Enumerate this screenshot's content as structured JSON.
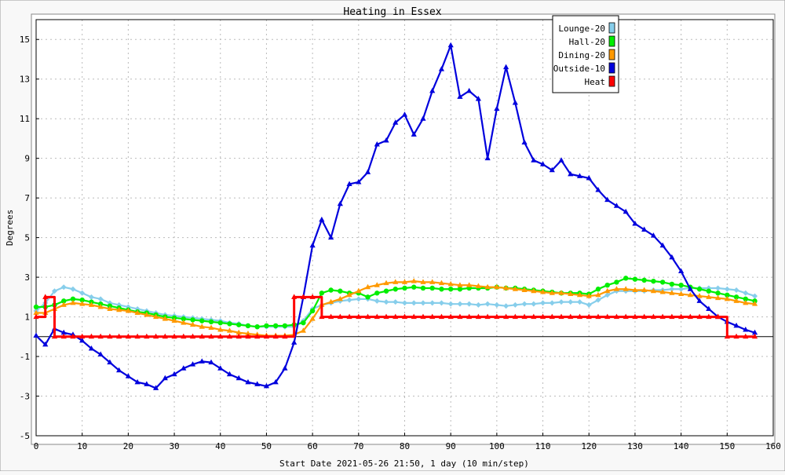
{
  "chart_data": {
    "type": "line",
    "title": "Heating in Essex",
    "xlabel": "Start Date 2021-05-26 21:50, 1 day (10 min/step)",
    "ylabel": "Degrees",
    "xlim": [
      0,
      160
    ],
    "ylim": [
      -5,
      16
    ],
    "x_ticks": [
      0,
      10,
      20,
      30,
      40,
      50,
      60,
      70,
      80,
      90,
      100,
      110,
      120,
      130,
      140,
      150,
      160
    ],
    "y_ticks": [
      -5,
      -3,
      -1,
      1,
      3,
      5,
      7,
      9,
      11,
      13,
      15
    ],
    "grid": true,
    "legend_position": "top-right",
    "x": [
      0,
      2,
      4,
      6,
      8,
      10,
      12,
      14,
      16,
      18,
      20,
      22,
      24,
      26,
      28,
      30,
      32,
      34,
      36,
      38,
      40,
      42,
      44,
      46,
      48,
      50,
      52,
      54,
      56,
      58,
      60,
      62,
      64,
      66,
      68,
      70,
      72,
      74,
      76,
      78,
      80,
      82,
      84,
      86,
      88,
      90,
      92,
      94,
      96,
      98,
      100,
      102,
      104,
      106,
      108,
      110,
      112,
      114,
      116,
      118,
      120,
      122,
      124,
      126,
      128,
      130,
      132,
      134,
      136,
      138,
      140,
      142,
      144,
      146,
      148,
      150,
      152,
      154,
      156
    ],
    "series": [
      {
        "name": "Lounge-20",
        "color": "#87ceeb",
        "marker": "diamond",
        "values": [
          1.3,
          1.7,
          2.3,
          2.5,
          2.4,
          2.2,
          2.0,
          1.9,
          1.7,
          1.6,
          1.5,
          1.4,
          1.3,
          1.2,
          1.1,
          1.05,
          1.0,
          0.95,
          0.9,
          0.85,
          0.8,
          0.7,
          0.65,
          0.55,
          0.5,
          0.5,
          0.5,
          0.5,
          0.5,
          0.8,
          1.4,
          1.6,
          1.7,
          1.8,
          1.85,
          1.9,
          1.9,
          1.8,
          1.75,
          1.75,
          1.7,
          1.7,
          1.7,
          1.7,
          1.7,
          1.65,
          1.65,
          1.65,
          1.6,
          1.65,
          1.6,
          1.55,
          1.6,
          1.65,
          1.65,
          1.7,
          1.7,
          1.75,
          1.75,
          1.75,
          1.6,
          1.85,
          2.1,
          2.3,
          2.3,
          2.3,
          2.3,
          2.35,
          2.35,
          2.4,
          2.4,
          2.45,
          2.45,
          2.45,
          2.45,
          2.4,
          2.35,
          2.2,
          2.05
        ]
      },
      {
        "name": "Hall-20",
        "color": "#00ee00",
        "marker": "circle",
        "values": [
          1.5,
          1.5,
          1.6,
          1.8,
          1.9,
          1.85,
          1.75,
          1.65,
          1.55,
          1.45,
          1.35,
          1.25,
          1.2,
          1.1,
          1.0,
          0.95,
          0.9,
          0.85,
          0.8,
          0.75,
          0.7,
          0.65,
          0.6,
          0.55,
          0.5,
          0.55,
          0.55,
          0.55,
          0.6,
          0.7,
          1.3,
          2.2,
          2.35,
          2.3,
          2.2,
          2.2,
          2.0,
          2.2,
          2.3,
          2.4,
          2.45,
          2.5,
          2.45,
          2.45,
          2.4,
          2.4,
          2.4,
          2.45,
          2.45,
          2.45,
          2.5,
          2.45,
          2.45,
          2.4,
          2.35,
          2.3,
          2.25,
          2.2,
          2.2,
          2.2,
          2.15,
          2.4,
          2.6,
          2.75,
          2.95,
          2.9,
          2.85,
          2.8,
          2.75,
          2.65,
          2.6,
          2.5,
          2.4,
          2.3,
          2.2,
          2.1,
          2.0,
          1.9,
          1.8
        ]
      },
      {
        "name": "Dining-20",
        "color": "#ff9900",
        "marker": "triangle",
        "values": [
          1.2,
          1.2,
          1.4,
          1.6,
          1.7,
          1.65,
          1.6,
          1.5,
          1.4,
          1.35,
          1.3,
          1.2,
          1.1,
          1.0,
          0.9,
          0.8,
          0.7,
          0.6,
          0.5,
          0.45,
          0.35,
          0.3,
          0.2,
          0.15,
          0.1,
          0.05,
          0.05,
          0.05,
          0.1,
          0.3,
          0.9,
          1.6,
          1.75,
          1.9,
          2.1,
          2.3,
          2.5,
          2.6,
          2.7,
          2.75,
          2.75,
          2.8,
          2.75,
          2.75,
          2.7,
          2.65,
          2.6,
          2.6,
          2.55,
          2.5,
          2.5,
          2.45,
          2.4,
          2.35,
          2.3,
          2.25,
          2.2,
          2.2,
          2.15,
          2.1,
          2.05,
          2.1,
          2.3,
          2.4,
          2.4,
          2.35,
          2.35,
          2.3,
          2.25,
          2.2,
          2.15,
          2.1,
          2.05,
          2.0,
          1.95,
          1.9,
          1.8,
          1.7,
          1.65
        ]
      },
      {
        "name": "Outside-10",
        "color": "#0000dd",
        "marker": "triangle",
        "values": [
          0.05,
          -0.4,
          0.4,
          0.2,
          0.1,
          -0.2,
          -0.6,
          -0.9,
          -1.3,
          -1.7,
          -2.0,
          -2.3,
          -2.4,
          -2.6,
          -2.1,
          -1.9,
          -1.6,
          -1.4,
          -1.25,
          -1.3,
          -1.6,
          -1.9,
          -2.1,
          -2.3,
          -2.4,
          -2.5,
          -2.3,
          -1.6,
          -0.3,
          2.0,
          4.6,
          5.9,
          5.0,
          6.7,
          7.7,
          7.8,
          8.3,
          9.7,
          9.9,
          10.8,
          11.2,
          10.2,
          11.0,
          12.4,
          13.5,
          14.7,
          12.1,
          12.4,
          12.0,
          9.0,
          11.5,
          13.6,
          11.8,
          9.8,
          8.9,
          8.7,
          8.4,
          8.9,
          8.2,
          8.1,
          8.0,
          7.4,
          6.9,
          6.6,
          6.3,
          5.7,
          5.4,
          5.1,
          4.6,
          4.0,
          3.3,
          2.4,
          1.8,
          1.4,
          1.0,
          0.75,
          0.55,
          0.35,
          0.2
        ]
      },
      {
        "name": "Heat",
        "color": "#ff0000",
        "marker": "triangle",
        "values": [
          1.0,
          2.0,
          0.0,
          0.0,
          0.0,
          0.0,
          0.0,
          0.0,
          0.0,
          0.0,
          0.0,
          0.0,
          0.0,
          0.0,
          0.0,
          0.0,
          0.0,
          0.0,
          0.0,
          0.0,
          0.0,
          0.0,
          0.0,
          0.0,
          0.0,
          0.0,
          0.0,
          0.0,
          2.0,
          2.0,
          2.0,
          1.0,
          1.0,
          1.0,
          1.0,
          1.0,
          1.0,
          1.0,
          1.0,
          1.0,
          1.0,
          1.0,
          1.0,
          1.0,
          1.0,
          1.0,
          1.0,
          1.0,
          1.0,
          1.0,
          1.0,
          1.0,
          1.0,
          1.0,
          1.0,
          1.0,
          1.0,
          1.0,
          1.0,
          1.0,
          1.0,
          1.0,
          1.0,
          1.0,
          1.0,
          1.0,
          1.0,
          1.0,
          1.0,
          1.0,
          1.0,
          1.0,
          1.0,
          1.0,
          1.0,
          0.0,
          0.0,
          0.0,
          0.0
        ]
      }
    ]
  }
}
